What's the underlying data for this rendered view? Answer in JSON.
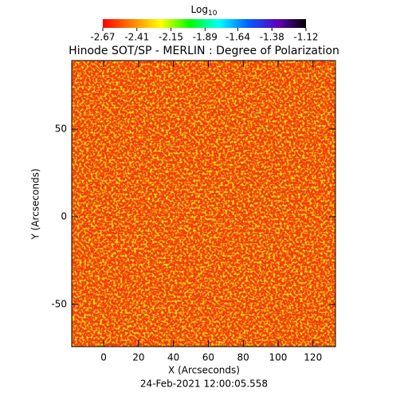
{
  "chart_data": {
    "type": "heatmap",
    "title": "Hinode SOT/SP - MERLIN : Degree of Polarization",
    "xlabel": "X (Arcseconds)",
    "ylabel": "Y (Arcseconds)",
    "footer": "24-Feb-2021 12:00:05.558",
    "xlim": [
      -18.3,
      132.9
    ],
    "xticks": [
      0,
      20,
      40,
      60,
      80,
      100,
      120
    ],
    "ylim": [
      -74.1,
      89.1
    ],
    "yticks": [
      -50,
      0,
      50
    ],
    "colorbar": {
      "label": "Log",
      "label_subscript": "10",
      "clim": [
        -2.67,
        -1.12
      ],
      "ticks": [
        -2.67,
        -2.41,
        -2.15,
        -1.89,
        -1.64,
        -1.38,
        -1.12
      ],
      "colors": [
        "#ff0000",
        "#ff8000",
        "#ffff00",
        "#00ff00",
        "#00ffff",
        "#0060ff",
        "#6000c0",
        "#000000"
      ]
    }
  }
}
